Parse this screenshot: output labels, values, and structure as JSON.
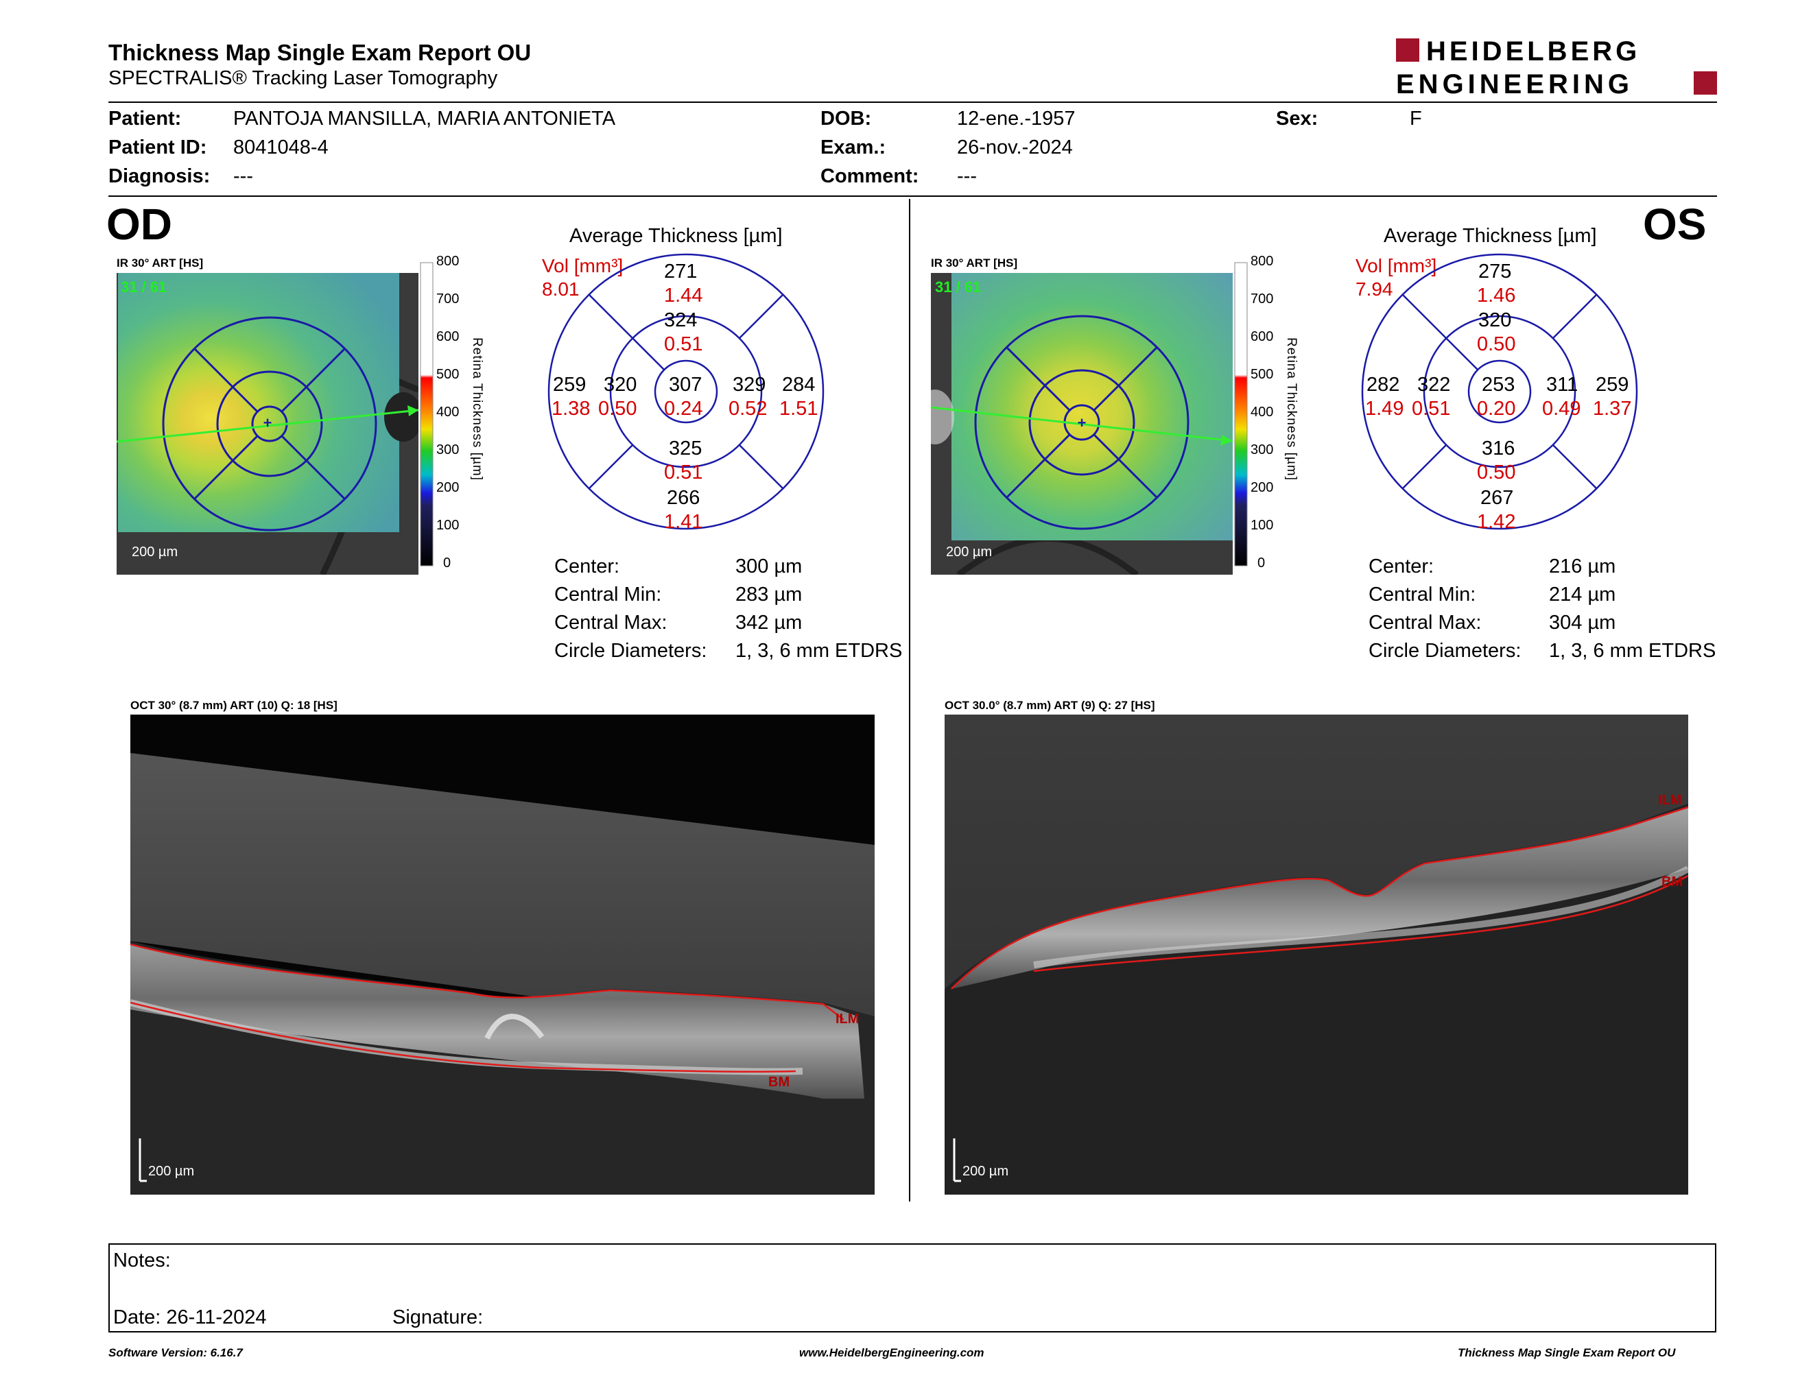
{
  "header": {
    "title": "Thickness Map Single Exam Report OU",
    "subtitle": "SPECTRALIS® Tracking Laser Tomography",
    "logo_line1": "HEIDELBERG",
    "logo_line2": "ENGINEERING"
  },
  "patient": {
    "patient_label": "Patient:",
    "patient_value": "PANTOJA MANSILLA, MARIA ANTONIETA",
    "id_label": "Patient ID:",
    "id_value": "8041048-4",
    "diag_label": "Diagnosis:",
    "diag_value": "---",
    "dob_label": "DOB:",
    "dob_value": "12-ene.-1957",
    "exam_label": "Exam.:",
    "exam_value": "26-nov.-2024",
    "comment_label": "Comment:",
    "comment_value": "---",
    "sex_label": "Sex:",
    "sex_value": "F"
  },
  "od": {
    "eye": "OD",
    "fundus_caption": "IR 30° ART [HS]",
    "fundus_count": "31 / 61",
    "fundus_scale": "200 µm",
    "avg_title": "Average Thickness [µm]",
    "vol_label": "Vol [mm³]",
    "vol_value": "8.01",
    "sectors": {
      "outer_top": {
        "t": "271",
        "v": "1.44"
      },
      "inner_top": {
        "t": "324",
        "v": "0.51"
      },
      "outer_left": {
        "t": "259",
        "v": "1.38"
      },
      "inner_left": {
        "t": "320",
        "v": "0.50"
      },
      "center": {
        "t": "307",
        "v": "0.24"
      },
      "inner_right": {
        "t": "329",
        "v": "0.52"
      },
      "outer_right": {
        "t": "284",
        "v": "1.51"
      },
      "inner_bottom": {
        "t": "325",
        "v": "0.51"
      },
      "outer_bottom": {
        "t": "266",
        "v": "1.41"
      }
    },
    "stats": {
      "center_label": "Center:",
      "center_value": "300 µm",
      "min_label": "Central Min:",
      "min_value": "283 µm",
      "max_label": "Central Max:",
      "max_value": "342 µm",
      "diam_label": "Circle Diameters:",
      "diam_value": "1, 3, 6 mm ETDRS"
    },
    "oct_caption": "OCT 30° (8.7 mm) ART (10) Q: 18 [HS]",
    "oct_scale": "200 µm",
    "ilm": "ILM",
    "bm": "BM"
  },
  "os": {
    "eye": "OS",
    "fundus_caption": "IR 30° ART [HS]",
    "fundus_count": "31 / 61",
    "fundus_scale": "200 µm",
    "avg_title": "Average Thickness [µm]",
    "vol_label": "Vol [mm³]",
    "vol_value": "7.94",
    "sectors": {
      "outer_top": {
        "t": "275",
        "v": "1.46"
      },
      "inner_top": {
        "t": "320",
        "v": "0.50"
      },
      "outer_left": {
        "t": "282",
        "v": "1.49"
      },
      "inner_left": {
        "t": "322",
        "v": "0.51"
      },
      "center": {
        "t": "253",
        "v": "0.20"
      },
      "inner_right": {
        "t": "311",
        "v": "0.49"
      },
      "outer_right": {
        "t": "259",
        "v": "1.37"
      },
      "inner_bottom": {
        "t": "316",
        "v": "0.50"
      },
      "outer_bottom": {
        "t": "267",
        "v": "1.42"
      }
    },
    "stats": {
      "center_label": "Center:",
      "center_value": "216 µm",
      "min_label": "Central Min:",
      "min_value": "214 µm",
      "max_label": "Central Max:",
      "max_value": "304 µm",
      "diam_label": "Circle Diameters:",
      "diam_value": "1, 3, 6 mm ETDRS"
    },
    "oct_caption": "OCT 30.0° (8.7 mm) ART (9) Q: 27 [HS]",
    "oct_scale": "200 µm",
    "ilm": "ILM",
    "bm": "BM"
  },
  "colorbar": {
    "ticks": [
      "800",
      "700",
      "600",
      "500",
      "400",
      "300",
      "200",
      "100",
      "0"
    ],
    "axis_label": "Retina Thickness [µm]"
  },
  "notes": {
    "notes_label": "Notes:",
    "date_label": "Date: 26-11-2024",
    "signature_label": "Signature:"
  },
  "footer": {
    "software": "Software Version: 6.16.7",
    "website": "www.HeidelbergEngineering.com",
    "report": "Thickness Map Single Exam Report OU"
  },
  "colors": {
    "red_value": "#d40000",
    "etdrs_blue": "#1a1aa8",
    "logo_red": "#a0132a"
  }
}
